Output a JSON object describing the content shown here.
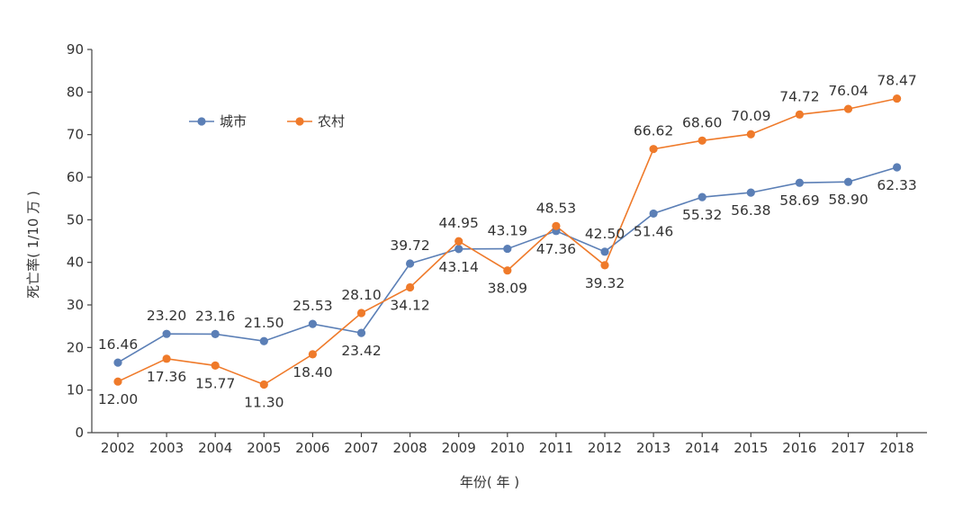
{
  "chart_data": {
    "type": "line",
    "title": "",
    "xlabel": "年份( 年 )",
    "ylabel": "死亡率( 1/10 万 )",
    "ylim": [
      0,
      90
    ],
    "yticks": [
      0,
      10,
      20,
      30,
      40,
      50,
      60,
      70,
      80,
      90
    ],
    "grid": false,
    "legend_position": "top-left",
    "categories": [
      "2002",
      "2003",
      "2004",
      "2005",
      "2006",
      "2007",
      "2008",
      "2009",
      "2010",
      "2011",
      "2012",
      "2013",
      "2014",
      "2015",
      "2016",
      "2017",
      "2018"
    ],
    "series": [
      {
        "name": "城市",
        "color": "#5b7fb6",
        "values": [
          16.46,
          23.2,
          23.16,
          21.5,
          25.53,
          23.42,
          39.72,
          43.14,
          43.19,
          47.36,
          42.5,
          51.46,
          55.32,
          56.38,
          58.69,
          58.9,
          62.33
        ],
        "labels": [
          "16.46",
          "23.20",
          "23.16",
          "21.50",
          "25.53",
          "23.42",
          "39.72",
          "43.14",
          "43.19",
          "47.36",
          "42.50",
          "51.46",
          "55.32",
          "56.38",
          "58.69",
          "58.90",
          "62.33"
        ],
        "label_side": [
          "above",
          "above",
          "above",
          "above",
          "above",
          "below",
          "above",
          "below",
          "above",
          "below",
          "above",
          "below",
          "below",
          "below",
          "below",
          "below",
          "below"
        ]
      },
      {
        "name": "农村",
        "color": "#ef7a2a",
        "values": [
          12.0,
          17.36,
          15.77,
          11.3,
          18.4,
          28.1,
          34.12,
          44.95,
          38.09,
          48.53,
          39.32,
          66.62,
          68.6,
          70.09,
          74.72,
          76.04,
          78.47
        ],
        "labels": [
          "12.00",
          "17.36",
          "15.77",
          "11.30",
          "18.40",
          "28.10",
          "34.12",
          "44.95",
          "38.09",
          "48.53",
          "39.32",
          "66.62",
          "68.60",
          "70.09",
          "74.72",
          "76.04",
          "78.47"
        ],
        "label_side": [
          "below",
          "below",
          "below",
          "below",
          "below",
          "above",
          "below",
          "above",
          "below",
          "above",
          "below",
          "above",
          "above",
          "above",
          "above",
          "above",
          "above"
        ]
      }
    ]
  }
}
